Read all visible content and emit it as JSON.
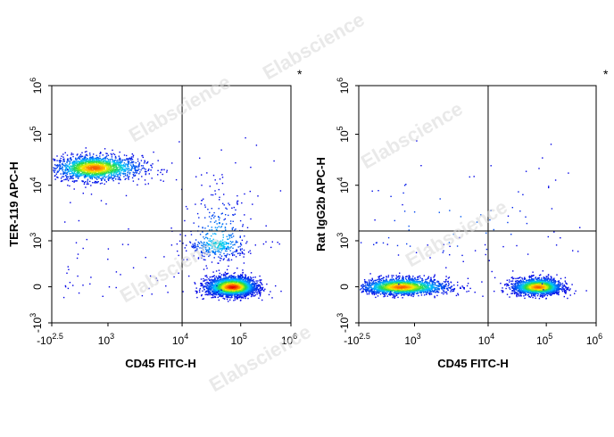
{
  "watermark": "Elabscience",
  "chart_data": [
    {
      "type": "scatter",
      "xlabel": "CD45 FITC-H",
      "ylabel": "TER-119 APC-H",
      "corner_mark": "*",
      "x_ticks": [
        "-10",
        "2.5",
        "10",
        "3",
        "10",
        "4",
        "10",
        "5",
        "10",
        "6"
      ],
      "x_tick_labels": [
        {
          "base": "-10",
          "exp": "2.5"
        },
        {
          "base": "10",
          "exp": "3"
        },
        {
          "base": "10",
          "exp": "4"
        },
        {
          "base": "10",
          "exp": "5"
        },
        {
          "base": "10",
          "exp": "6"
        }
      ],
      "y_tick_labels": [
        {
          "base": "-10",
          "exp": "3"
        },
        {
          "base": "0",
          "exp": ""
        },
        {
          "base": "10",
          "exp": "3"
        },
        {
          "base": "10",
          "exp": "4"
        },
        {
          "base": "10",
          "exp": "5"
        },
        {
          "base": "10",
          "exp": "6"
        }
      ],
      "x_scale": "biexponential",
      "y_scale": "biexponential",
      "gate_x": 10000,
      "gate_y": 1500,
      "populations": [
        {
          "x_log": 2.75,
          "y_log": 4.35,
          "spread_x": 0.35,
          "spread_y": 0.12,
          "density": "high",
          "n": 1800
        },
        {
          "x_log": 4.85,
          "y_log": 0.0,
          "spread_x": 0.22,
          "spread_y": 0.35,
          "density": "very high",
          "n": 2600
        },
        {
          "x_log": 4.6,
          "y_log": 2.8,
          "spread_x": 0.25,
          "spread_y": 0.5,
          "density": "low",
          "n": 450
        }
      ]
    },
    {
      "type": "scatter",
      "xlabel": "CD45 FITC-H",
      "ylabel": "Rat IgG2b APC-H",
      "corner_mark": "*",
      "x_tick_labels": [
        {
          "base": "-10",
          "exp": "2.5"
        },
        {
          "base": "10",
          "exp": "3"
        },
        {
          "base": "10",
          "exp": "4"
        },
        {
          "base": "10",
          "exp": "5"
        },
        {
          "base": "10",
          "exp": "6"
        }
      ],
      "y_tick_labels": [
        {
          "base": "-10",
          "exp": "3"
        },
        {
          "base": "0",
          "exp": ""
        },
        {
          "base": "10",
          "exp": "3"
        },
        {
          "base": "10",
          "exp": "4"
        },
        {
          "base": "10",
          "exp": "5"
        },
        {
          "base": "10",
          "exp": "6"
        }
      ],
      "x_scale": "biexponential",
      "y_scale": "biexponential",
      "gate_x": 10000,
      "gate_y": 1500,
      "populations": [
        {
          "x_log": 2.75,
          "y_log": 0.0,
          "spread_x": 0.35,
          "spread_y": 0.3,
          "density": "high",
          "n": 2000
        },
        {
          "x_log": 4.85,
          "y_log": 0.0,
          "spread_x": 0.22,
          "spread_y": 0.3,
          "density": "high",
          "n": 1800
        },
        {
          "x_log": 3.5,
          "y_log": 3.2,
          "spread_x": 0.9,
          "spread_y": 0.6,
          "density": "very low",
          "n": 60
        }
      ]
    }
  ]
}
